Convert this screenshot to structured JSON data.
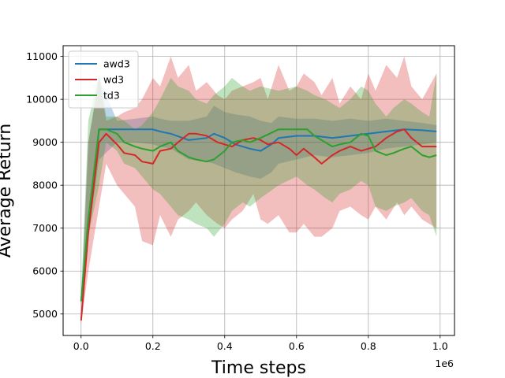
{
  "chart_data": {
    "type": "line",
    "title": "",
    "xlabel": "Time steps",
    "ylabel": "Average Return",
    "x_offset_label": "1e6",
    "xlim": [
      -0.05,
      1.04
    ],
    "ylim": [
      4500,
      11250
    ],
    "x_ticks": [
      0.0,
      0.2,
      0.4,
      0.6,
      0.8,
      1.0
    ],
    "x_tick_labels": [
      "0.0",
      "0.2",
      "0.4",
      "0.6",
      "0.8",
      "1.0"
    ],
    "y_ticks": [
      5000,
      6000,
      7000,
      8000,
      9000,
      10000,
      11000
    ],
    "y_tick_labels": [
      "5000",
      "6000",
      "7000",
      "8000",
      "9000",
      "10000",
      "11000"
    ],
    "grid": true,
    "legend_position": "top-left",
    "series": [
      {
        "name": "awd3",
        "color": "#1f77b4",
        "x": [
          0.0,
          0.02,
          0.05,
          0.1,
          0.15,
          0.2,
          0.22,
          0.25,
          0.3,
          0.35,
          0.37,
          0.4,
          0.43,
          0.47,
          0.5,
          0.53,
          0.55,
          0.6,
          0.65,
          0.7,
          0.75,
          0.8,
          0.85,
          0.9,
          0.95,
          0.99
        ],
        "y": [
          5300,
          7000,
          9300,
          9300,
          9300,
          9300,
          9250,
          9200,
          9050,
          9100,
          9200,
          9100,
          8950,
          8850,
          8800,
          8950,
          9100,
          9150,
          9150,
          9100,
          9150,
          9200,
          9250,
          9300,
          9280,
          9250
        ],
        "band_upper": [
          5400,
          9000,
          10500,
          9500,
          9550,
          9600,
          9550,
          9500,
          9500,
          9600,
          9850,
          9700,
          9650,
          9600,
          9500,
          9450,
          9600,
          9550,
          9550,
          9500,
          9550,
          9500,
          9550,
          9500,
          9450,
          9400
        ],
        "band_lower": [
          5200,
          6800,
          8600,
          9000,
          9000,
          8950,
          8900,
          8850,
          8600,
          8550,
          8500,
          8400,
          8300,
          8200,
          8150,
          8300,
          8500,
          8600,
          8700,
          8650,
          8700,
          8750,
          8850,
          8900,
          8950,
          9000
        ]
      },
      {
        "name": "wd3",
        "color": "#d62728",
        "x": [
          0.0,
          0.02,
          0.05,
          0.07,
          0.1,
          0.12,
          0.15,
          0.17,
          0.2,
          0.22,
          0.25,
          0.27,
          0.3,
          0.32,
          0.35,
          0.38,
          0.4,
          0.42,
          0.45,
          0.48,
          0.5,
          0.52,
          0.55,
          0.58,
          0.6,
          0.62,
          0.65,
          0.67,
          0.7,
          0.72,
          0.75,
          0.78,
          0.8,
          0.82,
          0.85,
          0.88,
          0.9,
          0.92,
          0.95,
          0.99
        ],
        "y": [
          4850,
          6900,
          9000,
          9200,
          8950,
          8750,
          8700,
          8550,
          8500,
          8800,
          8850,
          9000,
          9200,
          9200,
          9150,
          9000,
          8950,
          8900,
          9050,
          9100,
          9050,
          8950,
          9000,
          8850,
          8700,
          8850,
          8650,
          8500,
          8700,
          8800,
          8900,
          8800,
          8850,
          8900,
          9100,
          9250,
          9300,
          9100,
          8900,
          8900
        ],
        "band_upper": [
          4950,
          9000,
          10500,
          9500,
          9600,
          9700,
          9800,
          10000,
          10500,
          10300,
          11000,
          10500,
          10800,
          10200,
          10400,
          10100,
          10000,
          10200,
          10300,
          10400,
          10500,
          10000,
          10800,
          10200,
          10300,
          10600,
          10400,
          10100,
          10500,
          9900,
          10300,
          10000,
          10600,
          10200,
          10800,
          10500,
          11000,
          10300,
          10000,
          10600
        ],
        "band_lower": [
          4750,
          6000,
          7500,
          8500,
          8000,
          7800,
          7500,
          6700,
          6600,
          7300,
          6800,
          7200,
          7400,
          7600,
          7300,
          7100,
          7000,
          7200,
          7400,
          7800,
          7200,
          7100,
          7300,
          6900,
          6900,
          7100,
          6800,
          6800,
          7000,
          7400,
          7500,
          7300,
          7200,
          7500,
          7200,
          7600,
          7300,
          7500,
          7200,
          7000
        ]
      },
      {
        "name": "td3",
        "color": "#2ca02c",
        "x": [
          0.0,
          0.02,
          0.05,
          0.07,
          0.1,
          0.12,
          0.15,
          0.17,
          0.2,
          0.22,
          0.25,
          0.27,
          0.3,
          0.32,
          0.35,
          0.37,
          0.4,
          0.42,
          0.45,
          0.47,
          0.5,
          0.55,
          0.6,
          0.63,
          0.65,
          0.68,
          0.7,
          0.72,
          0.75,
          0.78,
          0.8,
          0.82,
          0.85,
          0.87,
          0.9,
          0.92,
          0.95,
          0.97,
          0.99
        ],
        "y": [
          5300,
          7200,
          9300,
          9300,
          9200,
          9000,
          8900,
          8850,
          8800,
          8900,
          9000,
          8800,
          8650,
          8600,
          8550,
          8600,
          8800,
          9000,
          9050,
          9000,
          9100,
          9300,
          9300,
          9300,
          9150,
          9000,
          8900,
          8950,
          9000,
          9200,
          9150,
          8800,
          8700,
          8750,
          8850,
          8900,
          8700,
          8650,
          8700
        ],
        "band_upper": [
          5400,
          9500,
          10600,
          9600,
          9600,
          9500,
          9300,
          9400,
          9700,
          10000,
          10500,
          10300,
          10200,
          10000,
          9900,
          10100,
          10300,
          10500,
          10300,
          10200,
          10300,
          10200,
          10300,
          10200,
          10100,
          10000,
          9900,
          9800,
          10000,
          10300,
          10200,
          9900,
          9600,
          9800,
          10000,
          9900,
          9700,
          9600,
          10600
        ],
        "band_lower": [
          5200,
          6800,
          8000,
          9000,
          8800,
          8500,
          8400,
          8200,
          7900,
          7800,
          7500,
          7300,
          7200,
          7100,
          7000,
          6800,
          7100,
          7400,
          7600,
          7500,
          7700,
          8000,
          8200,
          8000,
          7900,
          7700,
          7600,
          7800,
          7900,
          8100,
          8000,
          7500,
          7400,
          7500,
          7600,
          7700,
          7400,
          7300,
          6800
        ]
      }
    ]
  }
}
